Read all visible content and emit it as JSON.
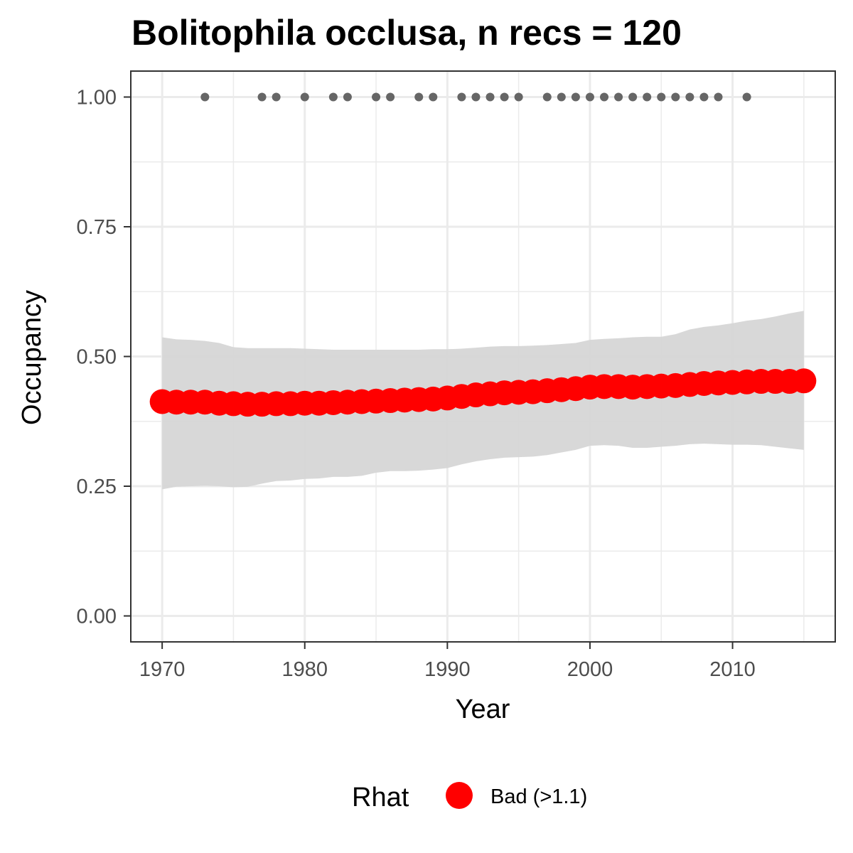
{
  "chart_data": {
    "type": "line",
    "title": "Bolitophila occlusa, n recs = 120",
    "xlabel": "Year",
    "ylabel": "Occupancy",
    "xlim": [
      1967.8,
      2017.2
    ],
    "ylim": [
      -0.05,
      1.05
    ],
    "x_ticks": [
      1970,
      1980,
      1990,
      2000,
      2010
    ],
    "x_tick_labels": [
      "1970",
      "1980",
      "1990",
      "2000",
      "2010"
    ],
    "y_ticks": [
      0,
      0.25,
      0.5,
      0.75,
      1.0
    ],
    "y_tick_labels": [
      "0.00",
      "0.25",
      "0.50",
      "0.75",
      "1.00"
    ],
    "grid": true,
    "legend": {
      "title": "Rhat",
      "placement": "bottom",
      "entries": [
        {
          "label": "Bad (>1.1)",
          "color": "#FF0000"
        }
      ]
    },
    "colors": {
      "estimate": "#FF0000",
      "ribbon": "#D6D6D6",
      "records": "#666666",
      "panel_border": "#333333",
      "grid": "#EBEBEB"
    },
    "series": [
      {
        "type": "ribbon",
        "x": [
          1970,
          1971,
          1972,
          1973,
          1974,
          1975,
          1976,
          1977,
          1978,
          1979,
          1980,
          1981,
          1982,
          1983,
          1984,
          1985,
          1986,
          1987,
          1988,
          1989,
          1990,
          1991,
          1992,
          1993,
          1994,
          1995,
          1996,
          1997,
          1998,
          1999,
          2000,
          2001,
          2002,
          2003,
          2004,
          2005,
          2006,
          2007,
          2008,
          2009,
          2010,
          2011,
          2012,
          2013,
          2014,
          2015
        ],
        "lower": [
          0.244,
          0.249,
          0.25,
          0.251,
          0.25,
          0.248,
          0.249,
          0.255,
          0.26,
          0.261,
          0.264,
          0.265,
          0.268,
          0.268,
          0.27,
          0.276,
          0.279,
          0.279,
          0.28,
          0.282,
          0.285,
          0.292,
          0.298,
          0.302,
          0.305,
          0.306,
          0.307,
          0.31,
          0.315,
          0.32,
          0.328,
          0.329,
          0.328,
          0.324,
          0.324,
          0.326,
          0.328,
          0.331,
          0.332,
          0.331,
          0.33,
          0.33,
          0.329,
          0.326,
          0.323,
          0.32
        ],
        "upper": [
          0.537,
          0.533,
          0.532,
          0.53,
          0.526,
          0.518,
          0.516,
          0.516,
          0.516,
          0.516,
          0.515,
          0.514,
          0.513,
          0.513,
          0.513,
          0.513,
          0.513,
          0.513,
          0.513,
          0.514,
          0.514,
          0.515,
          0.517,
          0.519,
          0.52,
          0.52,
          0.521,
          0.522,
          0.524,
          0.526,
          0.532,
          0.534,
          0.535,
          0.537,
          0.538,
          0.538,
          0.543,
          0.552,
          0.557,
          0.56,
          0.564,
          0.569,
          0.572,
          0.577,
          0.583,
          0.588
        ]
      },
      {
        "type": "points",
        "x": [
          1970,
          1971,
          1972,
          1973,
          1974,
          1975,
          1976,
          1977,
          1978,
          1979,
          1980,
          1981,
          1982,
          1983,
          1984,
          1985,
          1986,
          1987,
          1988,
          1989,
          1990,
          1991,
          1992,
          1993,
          1994,
          1995,
          1996,
          1997,
          1998,
          1999,
          2000,
          2001,
          2002,
          2003,
          2004,
          2005,
          2006,
          2007,
          2008,
          2009,
          2010,
          2011,
          2012,
          2013,
          2014,
          2015
        ],
        "y": [
          0.413,
          0.412,
          0.412,
          0.412,
          0.41,
          0.409,
          0.408,
          0.408,
          0.409,
          0.409,
          0.41,
          0.41,
          0.411,
          0.412,
          0.413,
          0.414,
          0.415,
          0.416,
          0.417,
          0.418,
          0.42,
          0.423,
          0.426,
          0.428,
          0.43,
          0.431,
          0.432,
          0.434,
          0.436,
          0.438,
          0.441,
          0.442,
          0.442,
          0.441,
          0.442,
          0.443,
          0.444,
          0.446,
          0.448,
          0.449,
          0.45,
          0.451,
          0.452,
          0.452,
          0.452,
          0.453
        ]
      },
      {
        "type": "records",
        "x": [
          1973,
          1977,
          1978,
          1980,
          1982,
          1983,
          1985,
          1986,
          1988,
          1989,
          1991,
          1992,
          1993,
          1994,
          1995,
          1997,
          1998,
          1999,
          2000,
          2001,
          2002,
          2003,
          2004,
          2005,
          2006,
          2007,
          2008,
          2009,
          2011
        ],
        "y": [
          1,
          1,
          1,
          1,
          1,
          1,
          1,
          1,
          1,
          1,
          1,
          1,
          1,
          1,
          1,
          1,
          1,
          1,
          1,
          1,
          1,
          1,
          1,
          1,
          1,
          1,
          1,
          1,
          1
        ]
      }
    ]
  }
}
